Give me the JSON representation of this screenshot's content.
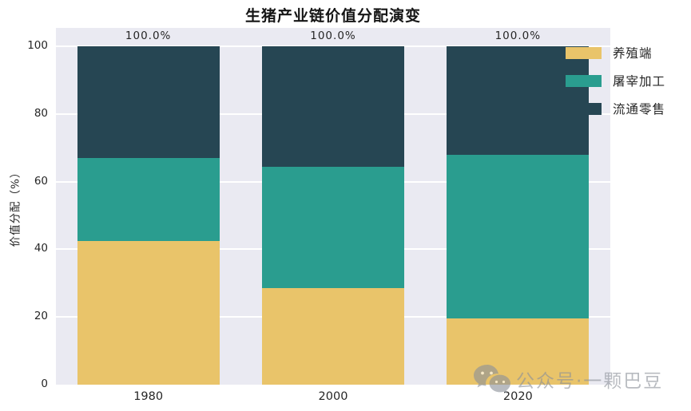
{
  "title": "生猪产业链价值分配演变",
  "watermark": {
    "text": "公众号·一颗巴豆",
    "icon": "wechat-icon"
  },
  "colors": {
    "breeding": "#E9C46A",
    "slaughter": "#2A9D8F",
    "retail": "#264653",
    "plot_background": "#EAEAF2",
    "gridline": "#FFFFFF",
    "tick_text": "#262626",
    "watermark_gray": "#8D929A"
  },
  "chart_data": {
    "type": "bar",
    "stacked": true,
    "title": "生猪产业链价值分配演变",
    "xlabel": "",
    "ylabel": "价值分配（%）",
    "categories": [
      "1980",
      "2000",
      "2020"
    ],
    "series": [
      {
        "name": "养殖端",
        "color": "#E9C46A",
        "values": [
          42.5,
          28.5,
          19.5
        ]
      },
      {
        "name": "屠宰加工",
        "color": "#2A9D8F",
        "values": [
          24.5,
          36.0,
          48.5
        ]
      },
      {
        "name": "流通零售",
        "color": "#264653",
        "values": [
          33.0,
          35.5,
          32.0
        ]
      }
    ],
    "bar_total_labels": [
      "100.0%",
      "100.0%",
      "100.0%"
    ],
    "ylim": [
      0,
      100
    ],
    "yticks": [
      0,
      20,
      40,
      60,
      80,
      100
    ],
    "grid": true,
    "legend_position": "upper-right-outside"
  }
}
